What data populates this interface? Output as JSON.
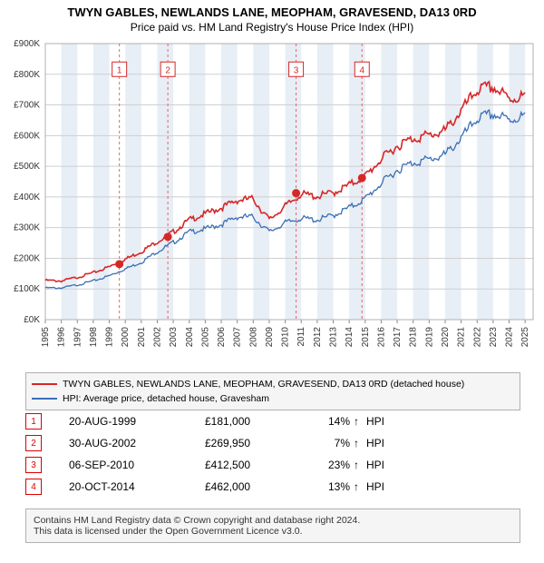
{
  "title_line1": "TWYN GABLES, NEWLANDS LANE, MEOPHAM, GRAVESEND, DA13 0RD",
  "title_line2": "Price paid vs. HM Land Registry's House Price Index (HPI)",
  "chart": {
    "type": "line",
    "background_color": "#ffffff",
    "plot_border_color": "#b0b0b0",
    "grid_color": "#cfcfcf",
    "vband_color": "#e8eef5",
    "vline_color": "#e06666",
    "x": {
      "min": 1995,
      "max": 2025.5,
      "tick_step": 1,
      "label_fontsize": 10,
      "label_rotation": -90
    },
    "y": {
      "min": 0,
      "max": 900000,
      "tick_step": 100000,
      "prefix": "£",
      "suffix": "K",
      "label_fontsize": 10
    },
    "years": [
      1995,
      1996,
      1997,
      1998,
      1999,
      2000,
      2001,
      2002,
      2003,
      2004,
      2005,
      2006,
      2007,
      2008,
      2009,
      2010,
      2011,
      2012,
      2013,
      2014,
      2015,
      2016,
      2017,
      2018,
      2019,
      2020,
      2021,
      2022,
      2023,
      2024,
      2025
    ],
    "series": [
      {
        "name": "TWYN GABLES, NEWLANDS LANE, MEOPHAM, GRAVESEND, DA13 0RD (detached house)",
        "color": "#d62728",
        "width": 1.6,
        "values_by_year": {
          "1995": 130000,
          "1996": 128000,
          "1997": 140000,
          "1998": 155000,
          "1999": 175000,
          "2000": 200000,
          "2001": 225000,
          "2002": 258000,
          "2003": 290000,
          "2004": 330000,
          "2005": 350000,
          "2006": 370000,
          "2007": 395000,
          "2008": 400000,
          "2009": 330000,
          "2010": 375000,
          "2011": 415000,
          "2012": 408000,
          "2013": 420000,
          "2014": 445000,
          "2015": 475000,
          "2016": 530000,
          "2017": 575000,
          "2018": 600000,
          "2019": 610000,
          "2020": 625000,
          "2021": 690000,
          "2022": 760000,
          "2023": 770000,
          "2024": 730000,
          "2025": 740000
        }
      },
      {
        "name": "HPI: Average price, detached house, Gravesham",
        "color": "#3b6fb6",
        "width": 1.3,
        "values_by_year": {
          "1995": 105000,
          "1996": 105000,
          "1997": 115000,
          "1998": 128000,
          "1999": 145000,
          "2000": 168000,
          "2001": 190000,
          "2002": 225000,
          "2003": 255000,
          "2004": 290000,
          "2005": 300000,
          "2006": 315000,
          "2007": 340000,
          "2008": 340000,
          "2009": 290000,
          "2010": 320000,
          "2011": 335000,
          "2012": 330000,
          "2013": 345000,
          "2014": 370000,
          "2015": 400000,
          "2016": 450000,
          "2017": 495000,
          "2018": 520000,
          "2019": 530000,
          "2020": 545000,
          "2021": 600000,
          "2022": 665000,
          "2023": 680000,
          "2024": 660000,
          "2025": 675000
        }
      }
    ],
    "sale_markers": [
      {
        "n": 1,
        "x": 1999.63,
        "y": 181000
      },
      {
        "n": 2,
        "x": 2002.66,
        "y": 269950
      },
      {
        "n": 3,
        "x": 2010.68,
        "y": 412500
      },
      {
        "n": 4,
        "x": 2014.8,
        "y": 462000
      }
    ],
    "marker_fill": "#d62728",
    "marker_radius": 4.5,
    "callout_box_border": "#d62728",
    "callout_box_fill": "#ffffff",
    "callout_y_val": 840000
  },
  "legend": {
    "items": [
      {
        "color": "#d62728",
        "label": "TWYN GABLES, NEWLANDS LANE, MEOPHAM, GRAVESEND, DA13 0RD (detached house)"
      },
      {
        "color": "#3b6fb6",
        "label": "HPI: Average price, detached house, Gravesham"
      }
    ]
  },
  "points_table": {
    "rows": [
      {
        "n": "1",
        "date": "20-AUG-1999",
        "price": "£181,000",
        "pct": "14%",
        "arrow": "↑",
        "hpi": "HPI"
      },
      {
        "n": "2",
        "date": "30-AUG-2002",
        "price": "£269,950",
        "pct": "7%",
        "arrow": "↑",
        "hpi": "HPI"
      },
      {
        "n": "3",
        "date": "06-SEP-2010",
        "price": "£412,500",
        "pct": "23%",
        "arrow": "↑",
        "hpi": "HPI"
      },
      {
        "n": "4",
        "date": "20-OCT-2014",
        "price": "£462,000",
        "pct": "13%",
        "arrow": "↑",
        "hpi": "HPI"
      }
    ]
  },
  "footer_line1": "Contains HM Land Registry data © Crown copyright and database right 2024.",
  "footer_line2": "This data is licensed under the Open Government Licence v3.0."
}
